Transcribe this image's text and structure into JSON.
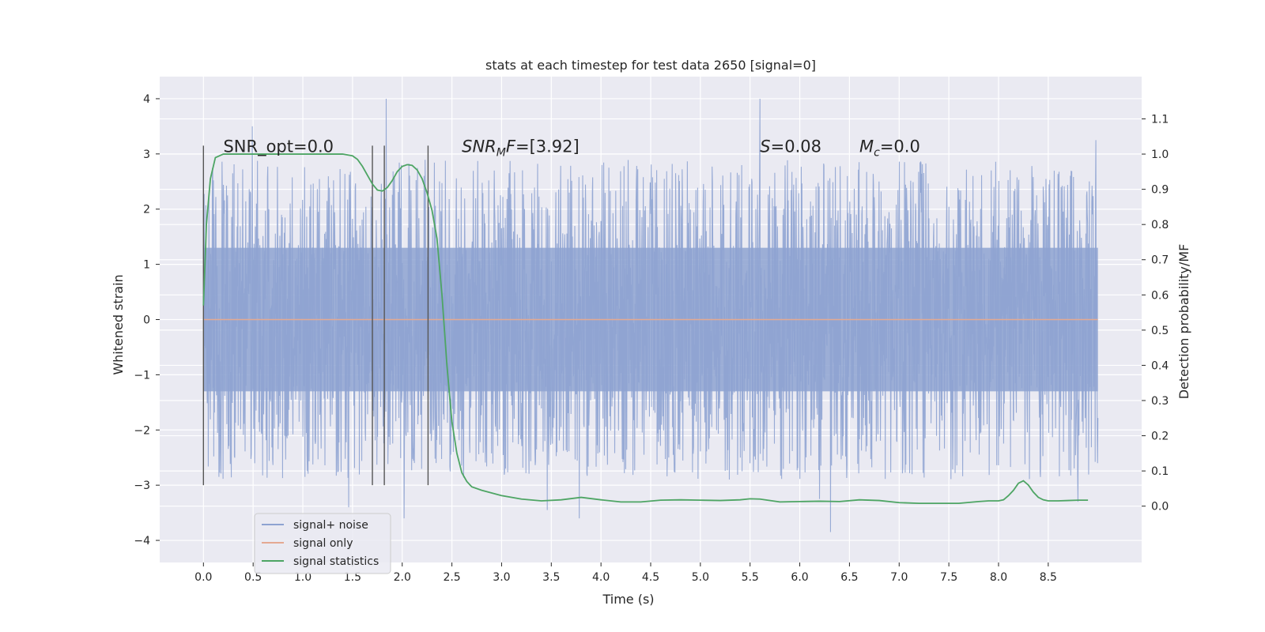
{
  "chart_data": {
    "type": "line",
    "title": "stats at each timestep for test data 2650 [signal=0]",
    "xlabel": "Time (s)",
    "ylabel": "Whitened strain",
    "y2label": "Detection probability/MF",
    "xlim": [
      -0.44,
      9.44
    ],
    "ylim": [
      -4.4,
      4.4
    ],
    "y2lim": [
      -0.16,
      1.22
    ],
    "x_ticks": [
      0.0,
      0.5,
      1.0,
      1.5,
      2.0,
      2.5,
      3.0,
      3.5,
      4.0,
      4.5,
      5.0,
      5.5,
      6.0,
      6.5,
      7.0,
      7.5,
      8.0,
      8.5
    ],
    "x_tick_labels": [
      "0.0",
      "0.5",
      "1.0",
      "1.5",
      "2.0",
      "2.5",
      "3.0",
      "3.5",
      "4.0",
      "4.5",
      "5.0",
      "5.5",
      "6.0",
      "6.5",
      "7.0",
      "7.5",
      "8.0",
      "8.5"
    ],
    "y_ticks": [
      4,
      3,
      2,
      1,
      0,
      -1,
      -2,
      -3,
      -4
    ],
    "y_tick_labels": [
      "4",
      "3",
      "2",
      "1",
      "0",
      "−1",
      "−2",
      "−3",
      "−4"
    ],
    "y2_ticks": [
      1.1,
      1.0,
      0.9,
      0.8,
      0.7,
      0.6,
      0.5,
      0.4,
      0.3,
      0.2,
      0.1,
      0.0
    ],
    "y2_tick_labels": [
      "1.1",
      "1.0",
      "0.9",
      "0.8",
      "0.7",
      "0.6",
      "0.5",
      "0.4",
      "0.3",
      "0.2",
      "0.1",
      "0.0"
    ],
    "grid": true,
    "background": "#eaeaf2",
    "legend_position": "lower-left",
    "annotations": [
      {
        "text": "SNR_opt=0.0",
        "x": 0.2,
        "y": 3.15
      },
      {
        "text": "SNR_MF=[3.92]",
        "x": 2.6,
        "y": 3.15
      },
      {
        "text": "S=0.08",
        "x": 5.6,
        "y": 3.15
      },
      {
        "text": "M_c=0.0",
        "x": 6.6,
        "y": 3.15
      }
    ],
    "vertical_markers": {
      "x": [
        0.0,
        1.7,
        1.82,
        2.26
      ],
      "y_from": -3.0,
      "y_to": 3.15,
      "color": "#555555"
    },
    "noise_envelope": {
      "x_range": [
        0.0,
        9.0
      ],
      "dense_band": [
        -1.3,
        1.3
      ],
      "typical_peak_max": 2.9,
      "typical_peak_min": -2.9,
      "extremes": [
        {
          "x": 0.49,
          "y": 3.5
        },
        {
          "x": 1.84,
          "y": 4.0
        },
        {
          "x": 2.02,
          "y": -3.6
        },
        {
          "x": 3.46,
          "y": -3.45
        },
        {
          "x": 3.78,
          "y": -3.6
        },
        {
          "x": 5.6,
          "y": 4.0
        },
        {
          "x": 6.31,
          "y": -3.85
        },
        {
          "x": 6.2,
          "y": -3.25
        },
        {
          "x": 8.8,
          "y": -3.3
        },
        {
          "x": 1.46,
          "y": -3.4
        },
        {
          "x": 8.98,
          "y": 3.25
        }
      ]
    },
    "series": [
      {
        "name": "signal+ noise",
        "color": "#8ea3d1",
        "values_description": "dense whitened strain noise from 0.0 to 9.0 s"
      },
      {
        "name": "signal only",
        "color": "#e4a992",
        "x": [
          0.0,
          9.0
        ],
        "y": [
          0.0,
          0.0
        ]
      },
      {
        "name": "signal statistics",
        "color": "#4ea564",
        "axis": "right",
        "x": [
          0.0,
          0.03,
          0.07,
          0.12,
          0.2,
          0.3,
          0.5,
          0.8,
          1.0,
          1.2,
          1.3,
          1.4,
          1.5,
          1.55,
          1.6,
          1.65,
          1.7,
          1.75,
          1.8,
          1.85,
          1.9,
          1.95,
          2.0,
          2.05,
          2.1,
          2.15,
          2.2,
          2.25,
          2.3,
          2.35,
          2.4,
          2.45,
          2.5,
          2.55,
          2.6,
          2.65,
          2.7,
          2.8,
          3.0,
          3.2,
          3.4,
          3.6,
          3.8,
          4.0,
          4.2,
          4.4,
          4.6,
          4.8,
          5.0,
          5.2,
          5.4,
          5.5,
          5.6,
          5.8,
          6.0,
          6.2,
          6.4,
          6.6,
          6.8,
          7.0,
          7.2,
          7.4,
          7.6,
          7.8,
          7.9,
          8.0,
          8.05,
          8.1,
          8.15,
          8.2,
          8.25,
          8.3,
          8.35,
          8.4,
          8.45,
          8.5,
          8.55,
          8.6,
          8.7,
          8.8,
          8.9
        ],
        "y": [
          0.57,
          0.8,
          0.93,
          0.99,
          1.0,
          1.0,
          1.0,
          1.0,
          1.0,
          1.0,
          1.0,
          1.0,
          0.995,
          0.985,
          0.965,
          0.94,
          0.915,
          0.898,
          0.895,
          0.905,
          0.925,
          0.95,
          0.965,
          0.97,
          0.968,
          0.955,
          0.93,
          0.89,
          0.84,
          0.76,
          0.6,
          0.4,
          0.24,
          0.15,
          0.095,
          0.07,
          0.055,
          0.045,
          0.03,
          0.02,
          0.015,
          0.018,
          0.025,
          0.018,
          0.012,
          0.012,
          0.017,
          0.018,
          0.017,
          0.016,
          0.018,
          0.021,
          0.02,
          0.012,
          0.013,
          0.014,
          0.013,
          0.018,
          0.016,
          0.01,
          0.008,
          0.008,
          0.008,
          0.013,
          0.015,
          0.015,
          0.018,
          0.03,
          0.045,
          0.065,
          0.072,
          0.06,
          0.04,
          0.025,
          0.018,
          0.015,
          0.015,
          0.015,
          0.016,
          0.017,
          0.017
        ]
      }
    ]
  }
}
